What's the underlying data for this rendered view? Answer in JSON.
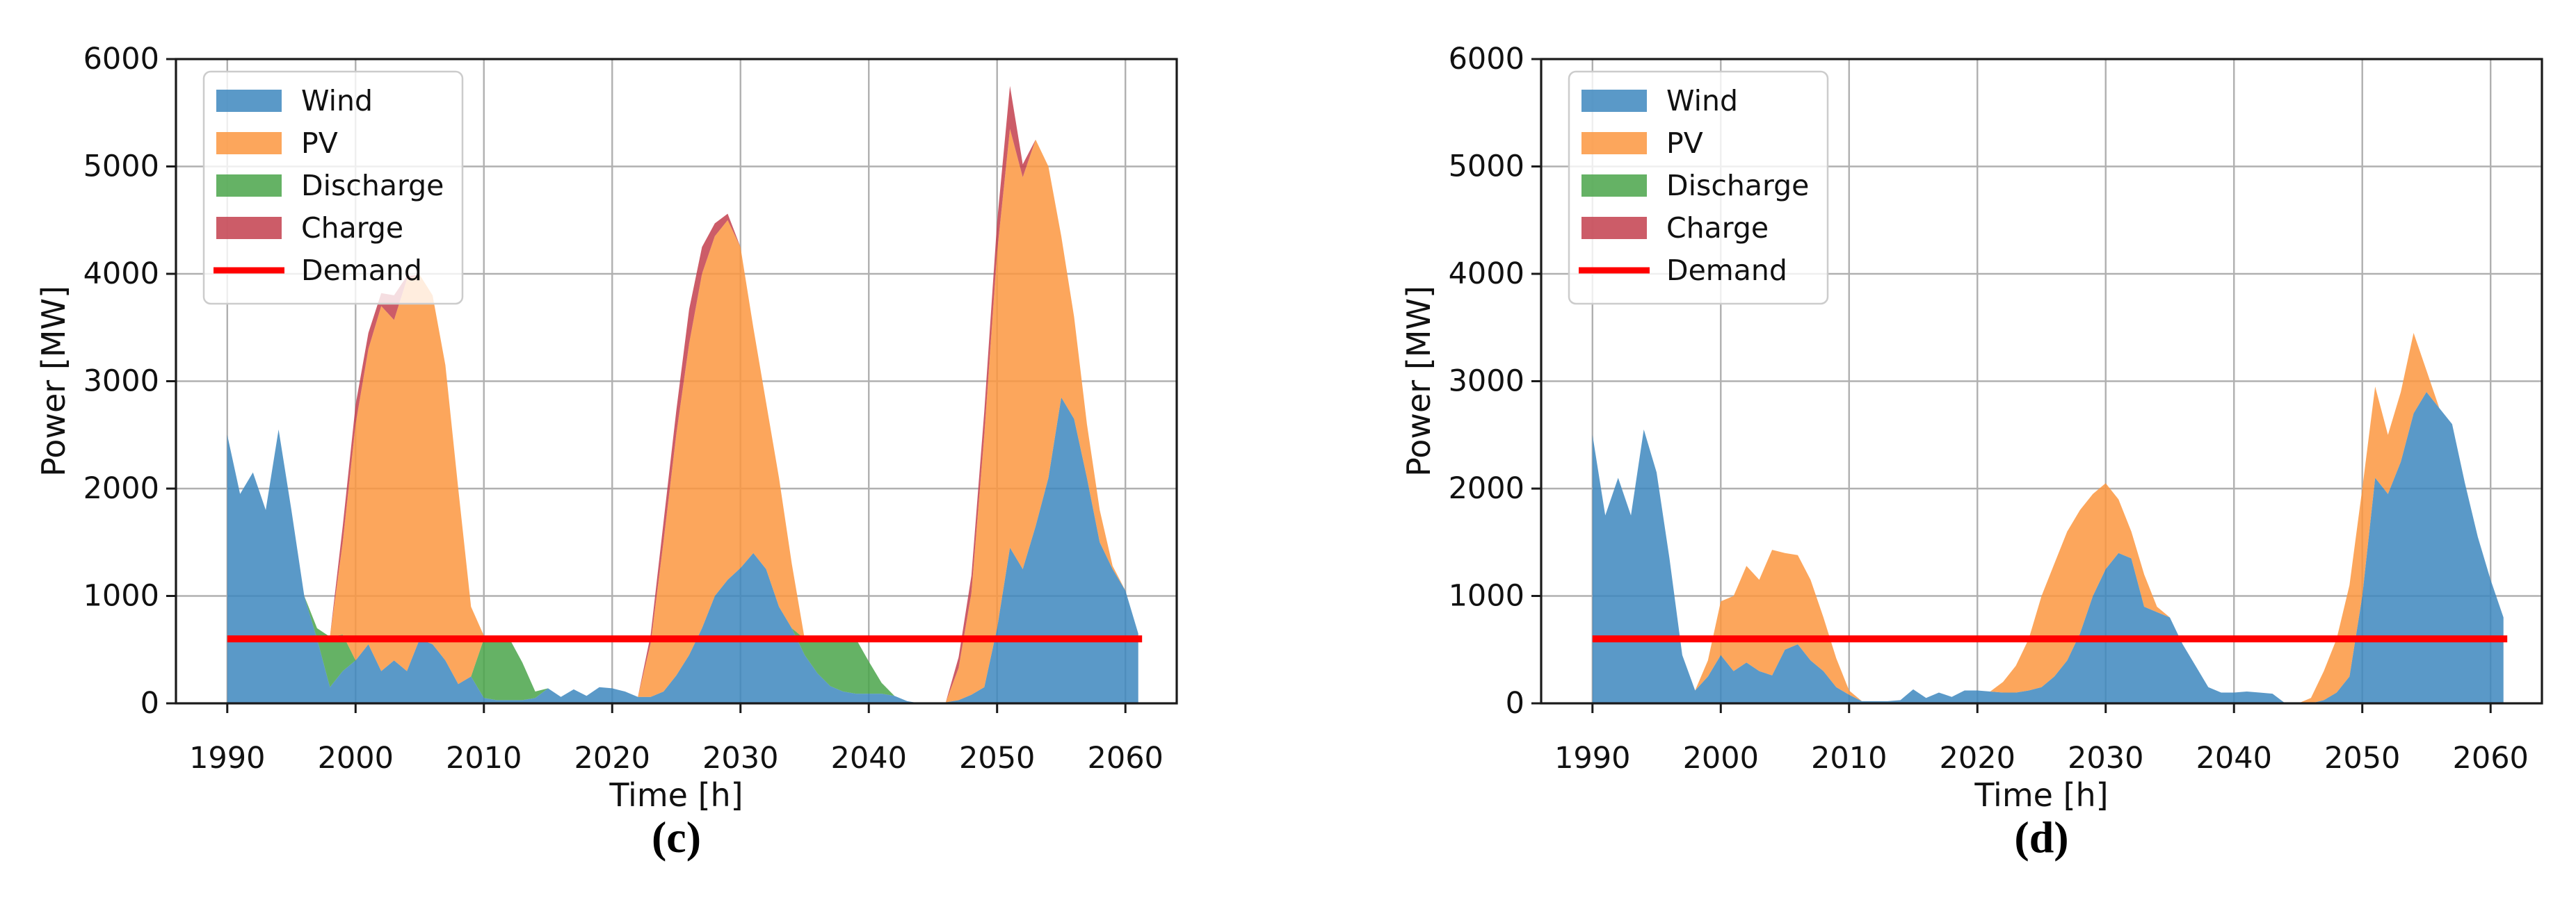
{
  "figure": {
    "colors": {
      "wind": "#3d87be",
      "pv": "#fb9740",
      "discharge": "#4aa54a",
      "charge": "#c33f4e",
      "demand": "#ff0000",
      "grid": "#b0b0b0",
      "spine": "#1a1a1a",
      "text": "#111111",
      "legend_border": "#cccccc"
    }
  },
  "chart_data": [
    {
      "id": "c",
      "caption": "(c)",
      "type": "area",
      "stacked": true,
      "title": "",
      "xlabel": "Time [h]",
      "ylabel": "Power [MW]",
      "xlim": [
        1986,
        2064
      ],
      "ylim": [
        0,
        6000
      ],
      "xticks": [
        1990,
        2000,
        2010,
        2020,
        2030,
        2040,
        2050,
        2060
      ],
      "yticks": [
        0,
        1000,
        2000,
        3000,
        4000,
        5000,
        6000
      ],
      "grid": true,
      "legend": {
        "position": "upper left",
        "entries": [
          {
            "label": "Wind",
            "key": "wind",
            "type": "patch"
          },
          {
            "label": "PV",
            "key": "pv",
            "type": "patch"
          },
          {
            "label": "Discharge",
            "key": "discharge",
            "type": "patch"
          },
          {
            "label": "Charge",
            "key": "charge",
            "type": "patch"
          },
          {
            "label": "Demand",
            "key": "demand",
            "type": "line"
          }
        ]
      },
      "x": [
        1990,
        1991,
        1992,
        1993,
        1994,
        1995,
        1996,
        1997,
        1998,
        1999,
        2000,
        2001,
        2002,
        2003,
        2004,
        2005,
        2006,
        2007,
        2008,
        2009,
        2010,
        2011,
        2012,
        2013,
        2014,
        2015,
        2016,
        2017,
        2018,
        2019,
        2020,
        2021,
        2022,
        2023,
        2024,
        2025,
        2026,
        2027,
        2028,
        2029,
        2030,
        2031,
        2032,
        2033,
        2034,
        2035,
        2036,
        2037,
        2038,
        2039,
        2040,
        2041,
        2042,
        2043,
        2044,
        2045,
        2046,
        2047,
        2048,
        2049,
        2050,
        2051,
        2052,
        2053,
        2054,
        2055,
        2056,
        2057,
        2058,
        2059,
        2060,
        2061
      ],
      "stack_series": [
        {
          "name": "Wind",
          "key": "wind",
          "values": [
            2500,
            1950,
            2150,
            1800,
            2550,
            1800,
            1000,
            600,
            150,
            300,
            400,
            550,
            300,
            400,
            300,
            600,
            550,
            400,
            180,
            250,
            50,
            30,
            30,
            30,
            50,
            140,
            60,
            130,
            70,
            150,
            140,
            110,
            60,
            60,
            110,
            260,
            450,
            700,
            1000,
            1150,
            1260,
            1400,
            1250,
            900,
            700,
            450,
            280,
            160,
            110,
            90,
            90,
            90,
            70,
            20,
            0,
            0,
            10,
            30,
            80,
            150,
            700,
            1450,
            1250,
            1650,
            2100,
            2850,
            2650,
            2100,
            1500,
            1250,
            1050,
            650
          ]
        },
        {
          "name": "Discharge",
          "key": "discharge",
          "values": [
            0,
            0,
            0,
            0,
            0,
            0,
            0,
            100,
            470,
            340,
            0,
            0,
            0,
            0,
            0,
            0,
            0,
            0,
            0,
            0,
            550,
            570,
            570,
            350,
            60,
            0,
            0,
            0,
            0,
            0,
            0,
            0,
            0,
            0,
            0,
            0,
            0,
            0,
            0,
            0,
            0,
            0,
            0,
            0,
            0,
            150,
            320,
            440,
            490,
            510,
            300,
            100,
            0,
            0,
            0,
            0,
            0,
            0,
            0,
            0,
            0,
            0,
            0,
            0,
            0,
            0,
            0,
            0,
            0,
            0,
            0,
            0
          ]
        },
        {
          "name": "PV",
          "key": "pv",
          "values": [
            0,
            0,
            0,
            0,
            0,
            0,
            0,
            0,
            0,
            860,
            2200,
            2750,
            3400,
            3170,
            3650,
            3390,
            3250,
            2750,
            1820,
            650,
            30,
            0,
            0,
            0,
            0,
            0,
            0,
            0,
            0,
            0,
            0,
            0,
            0,
            500,
            1400,
            2250,
            2900,
            3300,
            3350,
            3350,
            2990,
            2100,
            1550,
            1200,
            600,
            0,
            0,
            0,
            0,
            0,
            0,
            0,
            0,
            0,
            0,
            0,
            0,
            300,
            950,
            2350,
            3500,
            3900,
            3650,
            3600,
            2900,
            1500,
            950,
            500,
            300,
            30,
            0,
            0
          ]
        },
        {
          "name": "Charge",
          "key": "charge",
          "values": [
            0,
            0,
            0,
            0,
            0,
            0,
            0,
            0,
            0,
            150,
            180,
            150,
            120,
            230,
            30,
            0,
            0,
            0,
            0,
            0,
            0,
            0,
            0,
            0,
            0,
            0,
            0,
            0,
            0,
            0,
            0,
            0,
            0,
            80,
            180,
            220,
            320,
            250,
            120,
            60,
            0,
            0,
            0,
            0,
            0,
            0,
            0,
            0,
            0,
            0,
            0,
            0,
            0,
            0,
            0,
            0,
            0,
            100,
            160,
            220,
            280,
            400,
            120,
            0,
            0,
            0,
            0,
            0,
            0,
            0,
            0,
            0
          ]
        }
      ],
      "demand": {
        "name": "Demand",
        "value": 600,
        "x_start": 1990,
        "x_end": 2061.3
      }
    },
    {
      "id": "d",
      "caption": "(d)",
      "type": "area",
      "stacked": true,
      "title": "",
      "xlabel": "Time [h]",
      "ylabel": "Power [MW]",
      "xlim": [
        1986,
        2064
      ],
      "ylim": [
        0,
        6000
      ],
      "xticks": [
        1990,
        2000,
        2010,
        2020,
        2030,
        2040,
        2050,
        2060
      ],
      "yticks": [
        0,
        1000,
        2000,
        3000,
        4000,
        5000,
        6000
      ],
      "grid": true,
      "legend": {
        "position": "upper left",
        "entries": [
          {
            "label": "Wind",
            "key": "wind",
            "type": "patch"
          },
          {
            "label": "PV",
            "key": "pv",
            "type": "patch"
          },
          {
            "label": "Discharge",
            "key": "discharge",
            "type": "patch"
          },
          {
            "label": "Charge",
            "key": "charge",
            "type": "patch"
          },
          {
            "label": "Demand",
            "key": "demand",
            "type": "line"
          }
        ]
      },
      "x": [
        1990,
        1991,
        1992,
        1993,
        1994,
        1995,
        1996,
        1997,
        1998,
        1999,
        2000,
        2001,
        2002,
        2003,
        2004,
        2005,
        2006,
        2007,
        2008,
        2009,
        2010,
        2011,
        2012,
        2013,
        2014,
        2015,
        2016,
        2017,
        2018,
        2019,
        2020,
        2021,
        2022,
        2023,
        2024,
        2025,
        2026,
        2027,
        2028,
        2029,
        2030,
        2031,
        2032,
        2033,
        2034,
        2035,
        2036,
        2037,
        2038,
        2039,
        2040,
        2041,
        2042,
        2043,
        2044,
        2045,
        2046,
        2047,
        2048,
        2049,
        2050,
        2051,
        2052,
        2053,
        2054,
        2055,
        2056,
        2057,
        2058,
        2059,
        2060,
        2061
      ],
      "stack_series": [
        {
          "name": "Wind",
          "key": "wind",
          "values": [
            2500,
            1750,
            2100,
            1750,
            2550,
            2150,
            1350,
            450,
            120,
            250,
            450,
            300,
            380,
            300,
            260,
            500,
            550,
            400,
            300,
            150,
            80,
            20,
            20,
            20,
            30,
            130,
            50,
            100,
            60,
            120,
            120,
            110,
            100,
            100,
            120,
            150,
            250,
            400,
            650,
            1000,
            1250,
            1400,
            1350,
            900,
            850,
            800,
            550,
            350,
            150,
            100,
            100,
            110,
            100,
            90,
            0,
            0,
            0,
            30,
            100,
            250,
            1000,
            2100,
            1950,
            2250,
            2700,
            2900,
            2750,
            2600,
            2050,
            1550,
            1150,
            800
          ]
        },
        {
          "name": "Discharge",
          "key": "discharge",
          "values": [
            0,
            0,
            0,
            0,
            0,
            0,
            0,
            0,
            0,
            0,
            0,
            0,
            0,
            0,
            0,
            0,
            0,
            0,
            0,
            0,
            0,
            0,
            0,
            0,
            0,
            0,
            0,
            0,
            0,
            0,
            0,
            0,
            0,
            0,
            0,
            0,
            0,
            0,
            0,
            0,
            0,
            0,
            0,
            0,
            0,
            0,
            0,
            0,
            0,
            0,
            0,
            0,
            0,
            0,
            0,
            0,
            0,
            0,
            0,
            0,
            0,
            0,
            0,
            0,
            0,
            0,
            0,
            0,
            0,
            0,
            0,
            0
          ]
        },
        {
          "name": "PV",
          "key": "pv",
          "values": [
            0,
            0,
            0,
            0,
            0,
            0,
            0,
            0,
            0,
            150,
            500,
            700,
            900,
            850,
            1170,
            900,
            830,
            750,
            500,
            270,
            40,
            0,
            0,
            0,
            0,
            0,
            0,
            0,
            0,
            0,
            0,
            0,
            100,
            250,
            480,
            850,
            1050,
            1200,
            1150,
            950,
            800,
            500,
            250,
            300,
            50,
            0,
            0,
            0,
            0,
            0,
            0,
            0,
            0,
            0,
            0,
            0,
            50,
            270,
            500,
            850,
            1000,
            850,
            550,
            650,
            750,
            200,
            0,
            0,
            0,
            0,
            0,
            0
          ]
        },
        {
          "name": "Charge",
          "key": "charge",
          "values": [
            0,
            0,
            0,
            0,
            0,
            0,
            0,
            0,
            0,
            0,
            0,
            0,
            0,
            0,
            0,
            0,
            0,
            0,
            0,
            0,
            0,
            0,
            0,
            0,
            0,
            0,
            0,
            0,
            0,
            0,
            0,
            0,
            0,
            0,
            0,
            0,
            0,
            0,
            0,
            0,
            0,
            0,
            0,
            0,
            0,
            0,
            0,
            0,
            0,
            0,
            0,
            0,
            0,
            0,
            0,
            0,
            0,
            0,
            0,
            0,
            0,
            0,
            0,
            0,
            0,
            0,
            0,
            0,
            0,
            0,
            0,
            0
          ]
        }
      ],
      "demand": {
        "name": "Demand",
        "value": 600,
        "x_start": 1990,
        "x_end": 2061.3
      }
    }
  ]
}
